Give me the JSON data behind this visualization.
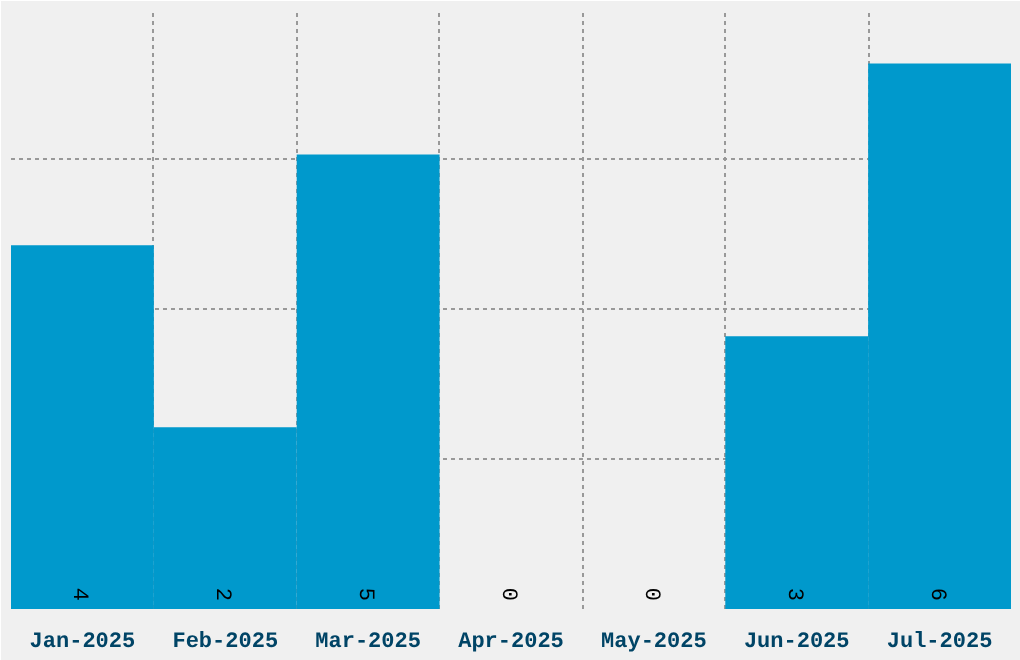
{
  "chart_data": {
    "type": "bar",
    "categories": [
      "Jan-2025",
      "Feb-2025",
      "Mar-2025",
      "Apr-2025",
      "May-2025",
      "Jun-2025",
      "Jul-2025"
    ],
    "values": [
      4,
      2,
      5,
      0,
      0,
      3,
      6
    ],
    "color": "#0099cc",
    "data_labels": true,
    "ylim": [
      0,
      6.6
    ],
    "yticks": [
      {
        "value": 0,
        "label": null
      },
      {
        "value": 1.65,
        "label": null
      },
      {
        "value": 3.3,
        "label": null
      },
      {
        "value": 4.95,
        "label": null
      },
      {
        "value": 6.6,
        "label": null
      }
    ],
    "tick_labels": "x",
    "grid": true
  }
}
